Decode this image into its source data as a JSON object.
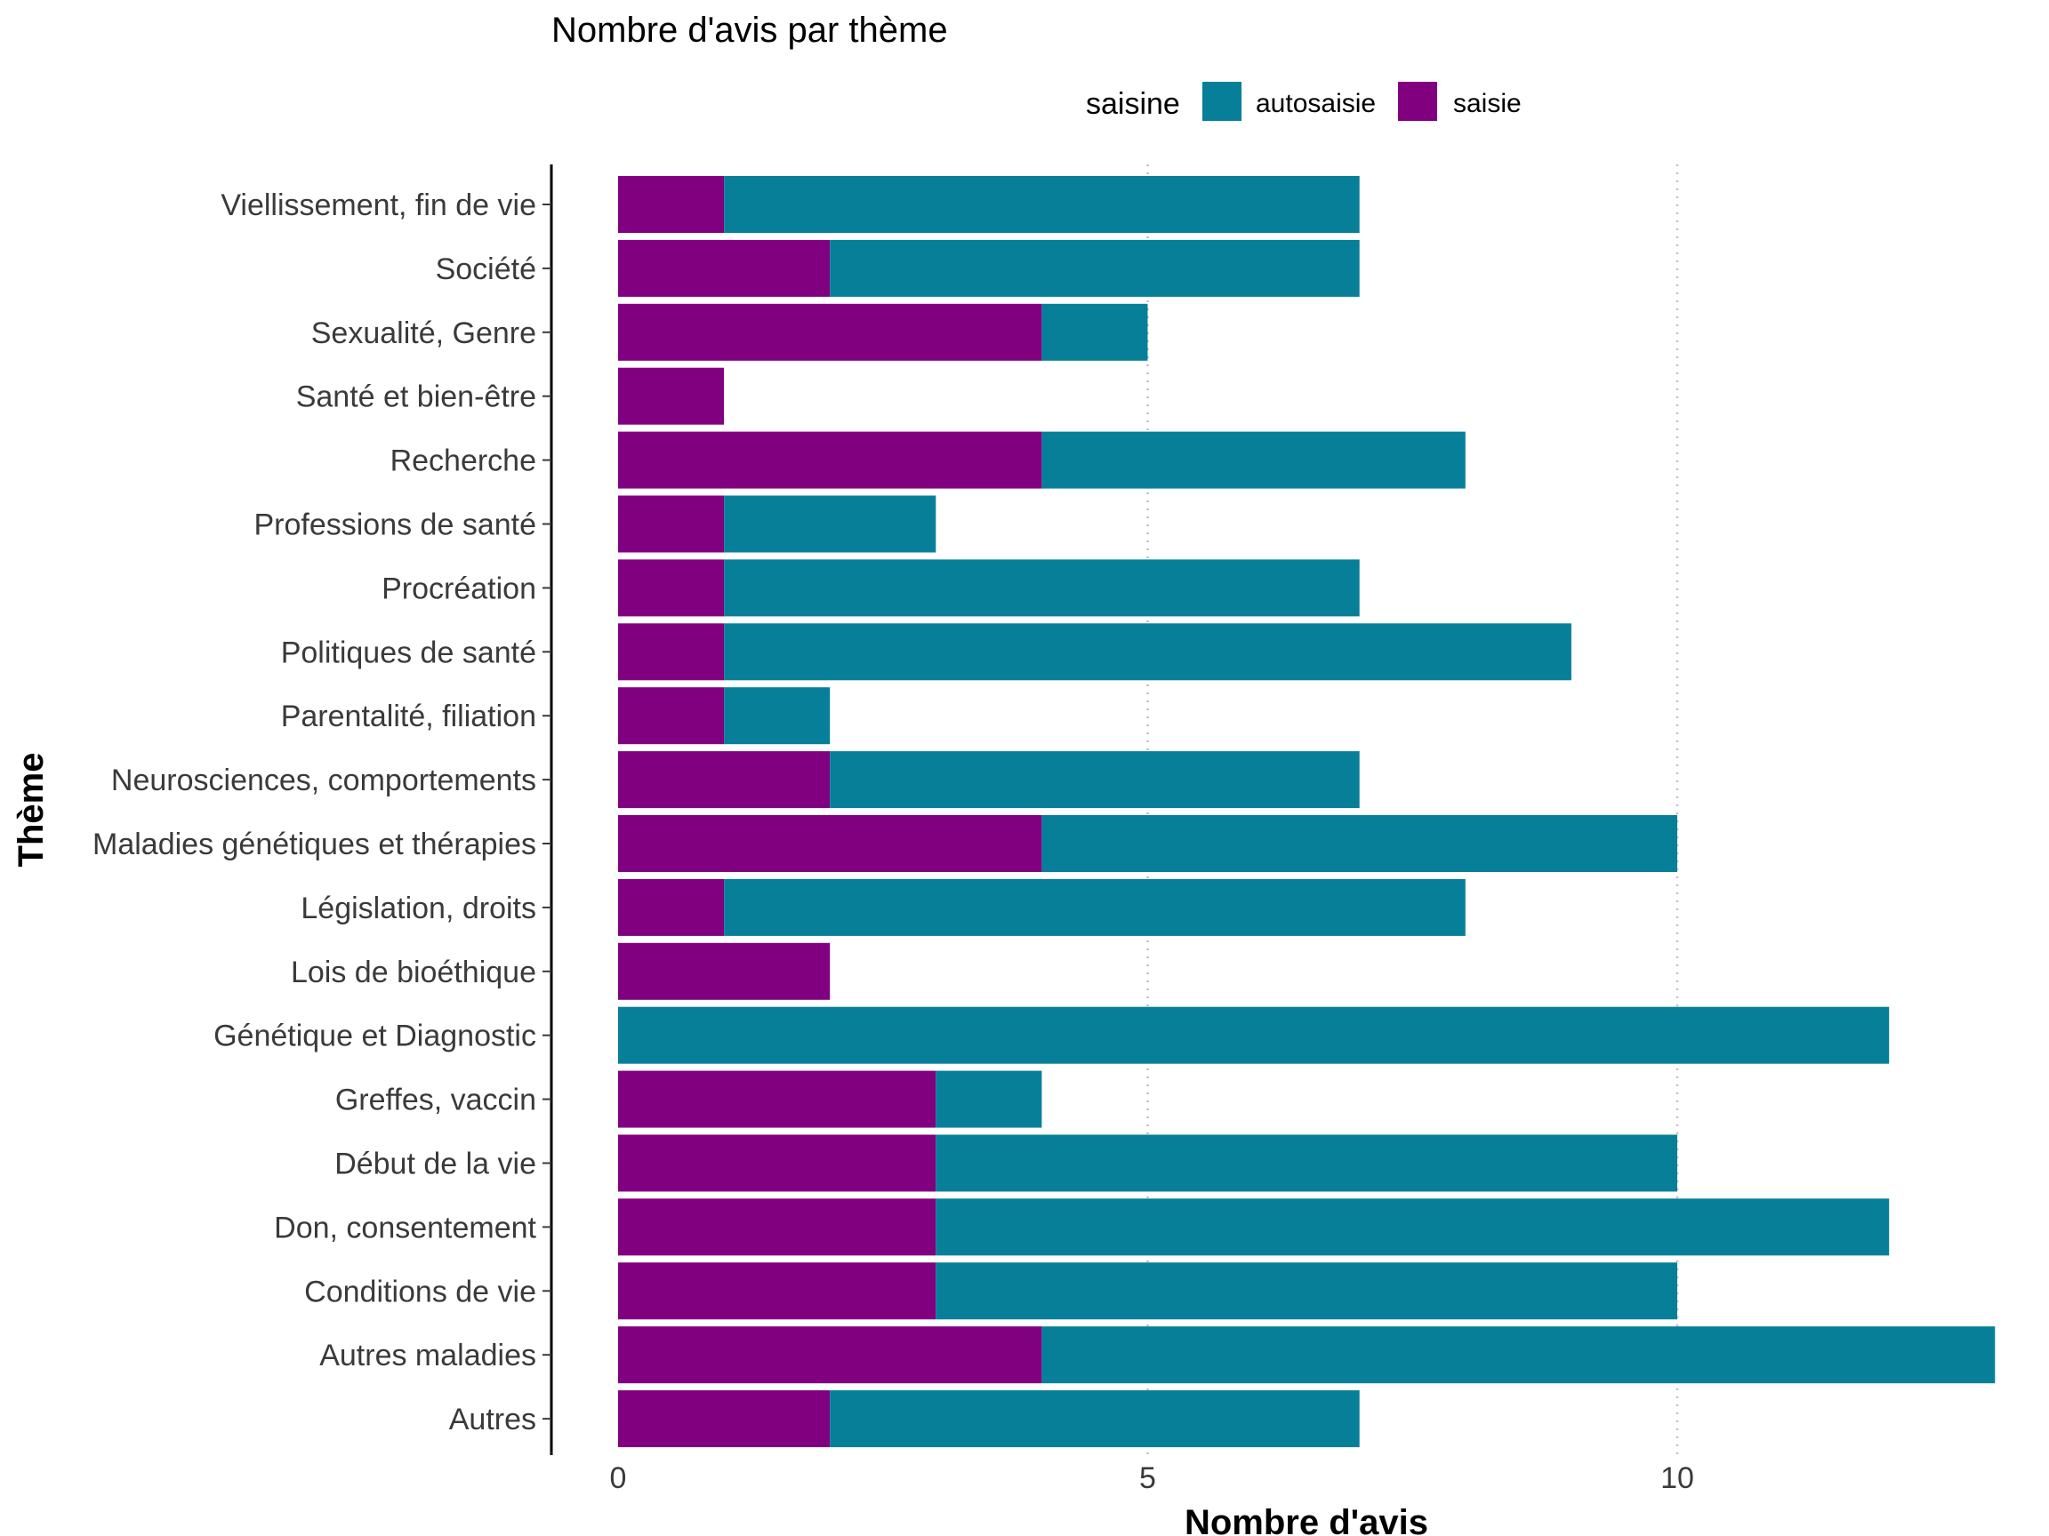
{
  "chart_data": {
    "type": "bar",
    "orientation": "horizontal",
    "stacked": true,
    "title": "Nombre d'avis par thème",
    "xlabel": "Nombre d'avis",
    "ylabel": "Thème",
    "xlim": [
      0,
      13
    ],
    "xticks": [
      "0",
      "5",
      "10"
    ],
    "xtick_values": [
      0,
      5,
      10
    ],
    "grid": "vertical dotted major lines",
    "legend": {
      "title": "saisine",
      "position": "top",
      "entries": [
        {
          "label": "autosaisie",
          "color": "#077F99"
        },
        {
          "label": "saisie",
          "color": "#800080"
        }
      ]
    },
    "categories": [
      "Viellissement, fin de vie",
      "Société",
      "Sexualité, Genre",
      "Santé et bien-être",
      "Recherche",
      "Professions de santé",
      "Procréation",
      "Politiques de santé",
      "Parentalité, filiation",
      "Neurosciences, comportements",
      "Maladies génétiques et thérapies",
      "Législation, droits",
      "Lois de bioéthique",
      "Génétique et Diagnostic",
      "Greffes, vaccin",
      "Début de la vie",
      "Don, consentement",
      "Conditions de vie",
      "Autres maladies",
      "Autres"
    ],
    "series": [
      {
        "name": "saisie",
        "color": "#800080",
        "values": [
          1,
          2,
          4,
          1,
          4,
          1,
          1,
          1,
          1,
          2,
          4,
          1,
          2,
          0,
          3,
          3,
          3,
          3,
          4,
          2
        ]
      },
      {
        "name": "autosaisie",
        "color": "#077F99",
        "values": [
          6,
          5,
          1,
          0,
          4,
          2,
          6,
          8,
          1,
          5,
          6,
          7,
          0,
          12,
          1,
          7,
          9,
          7,
          9,
          5
        ]
      }
    ]
  }
}
